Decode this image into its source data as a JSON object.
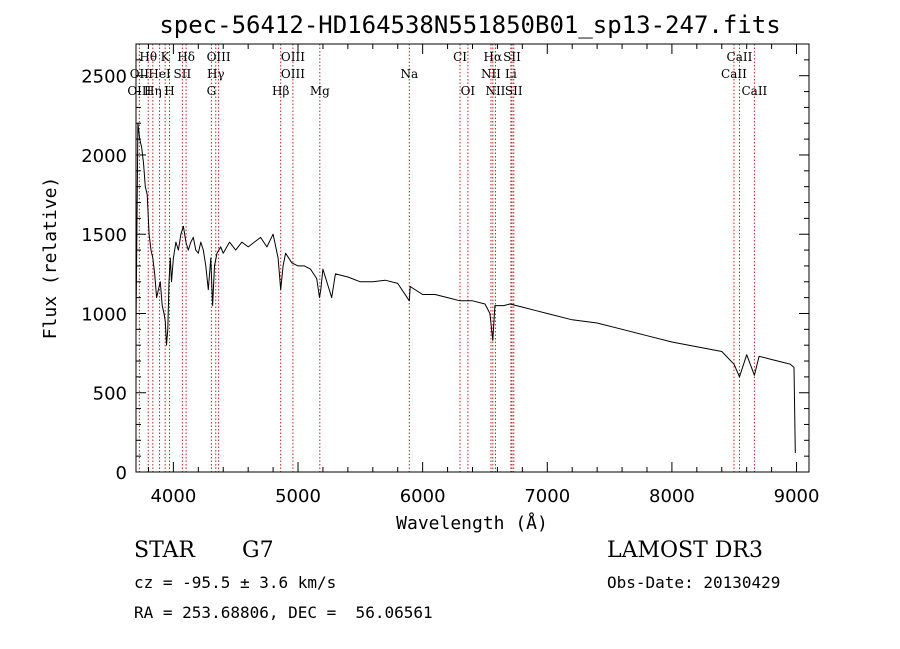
{
  "chart_data": {
    "type": "line",
    "title": "spec-56412-HD164538N551850B01_sp13-247.fits",
    "xlabel": "Wavelength (Å)",
    "ylabel": "Flux (relative)",
    "xlim": [
      3700,
      9100
    ],
    "ylim": [
      0,
      2700
    ],
    "xticks": [
      4000,
      5000,
      6000,
      7000,
      8000,
      9000
    ],
    "yticks": [
      0,
      500,
      1000,
      1500,
      2000,
      2500
    ],
    "grid": false,
    "series": [
      {
        "name": "flux",
        "x": [
          3700,
          3715,
          3730,
          3745,
          3760,
          3775,
          3790,
          3805,
          3820,
          3835,
          3850,
          3865,
          3880,
          3895,
          3910,
          3925,
          3935,
          3945,
          3955,
          3965,
          3975,
          3985,
          4000,
          4020,
          4040,
          4060,
          4080,
          4100,
          4120,
          4140,
          4160,
          4180,
          4200,
          4220,
          4240,
          4260,
          4280,
          4300,
          4315,
          4330,
          4350,
          4380,
          4400,
          4450,
          4500,
          4550,
          4600,
          4650,
          4700,
          4750,
          4800,
          4840,
          4861,
          4880,
          4900,
          4950,
          5000,
          5050,
          5100,
          5150,
          5172,
          5183,
          5200,
          5270,
          5300,
          5400,
          5500,
          5600,
          5700,
          5800,
          5893,
          5900,
          6000,
          6100,
          6200,
          6300,
          6400,
          6500,
          6540,
          6563,
          6580,
          6650,
          6700,
          6800,
          6900,
          7000,
          7200,
          7400,
          7600,
          7800,
          8000,
          8200,
          8400,
          8498,
          8542,
          8600,
          8662,
          8700,
          8800,
          8900,
          8950,
          8980,
          8990
        ],
        "values": [
          900,
          2200,
          2100,
          2050,
          1950,
          1800,
          1750,
          1500,
          1400,
          1350,
          1250,
          1100,
          1150,
          1200,
          1050,
          1000,
          950,
          800,
          900,
          1200,
          1350,
          1200,
          1350,
          1450,
          1400,
          1500,
          1550,
          1450,
          1400,
          1450,
          1480,
          1400,
          1380,
          1450,
          1400,
          1300,
          1150,
          1350,
          1050,
          1300,
          1380,
          1420,
          1380,
          1450,
          1400,
          1450,
          1420,
          1450,
          1480,
          1420,
          1500,
          1350,
          1150,
          1300,
          1380,
          1320,
          1300,
          1300,
          1280,
          1220,
          1100,
          1150,
          1280,
          1100,
          1250,
          1230,
          1200,
          1200,
          1210,
          1190,
          1080,
          1170,
          1120,
          1120,
          1100,
          1080,
          1080,
          1060,
          1000,
          830,
          1050,
          1050,
          1060,
          1040,
          1020,
          1000,
          960,
          940,
          900,
          860,
          820,
          790,
          760,
          680,
          600,
          740,
          610,
          730,
          710,
          690,
          680,
          660,
          120
        ]
      }
    ],
    "lines": [
      {
        "label": "Hθ",
        "x": 3798,
        "row": 0
      },
      {
        "label": "K",
        "x": 3934,
        "row": 0
      },
      {
        "label": "Hδ",
        "x": 4102,
        "row": 0
      },
      {
        "label": "OIII",
        "x": 4363,
        "row": 0
      },
      {
        "label": "OIII",
        "x": 4959,
        "row": 0
      },
      {
        "label": "CI",
        "x": 6300,
        "row": 0
      },
      {
        "label": "Hα",
        "x": 6563,
        "row": 0
      },
      {
        "label": "SII",
        "x": 6717,
        "row": 0
      },
      {
        "label": "CaII",
        "x": 8542,
        "row": 0
      },
      {
        "label": "OII",
        "x": 3727,
        "row": 1
      },
      {
        "label": "HeI",
        "x": 3889,
        "row": 1
      },
      {
        "label": "SII",
        "x": 4072,
        "row": 1
      },
      {
        "label": "Hγ",
        "x": 4340,
        "row": 1
      },
      {
        "label": "OIII",
        "x": 4959,
        "row": 1
      },
      {
        "label": "Na",
        "x": 5893,
        "row": 1
      },
      {
        "label": "NII",
        "x": 6548,
        "row": 1
      },
      {
        "label": "Li",
        "x": 6708,
        "row": 1
      },
      {
        "label": "CaII",
        "x": 8498,
        "row": 1
      },
      {
        "label": "OIII",
        "x": 3727,
        "row": 2
      },
      {
        "label": "Hη",
        "x": 3835,
        "row": 2
      },
      {
        "label": "H",
        "x": 3969,
        "row": 2
      },
      {
        "label": "G",
        "x": 4305,
        "row": 2
      },
      {
        "label": "Hβ",
        "x": 4861,
        "row": 2
      },
      {
        "label": "Mg",
        "x": 5175,
        "row": 2
      },
      {
        "label": "OI",
        "x": 6363,
        "row": 2
      },
      {
        "label": "NII",
        "x": 6584,
        "row": 2
      },
      {
        "label": "SII",
        "x": 6731,
        "row": 2
      },
      {
        "label": "CaII",
        "x": 8662,
        "row": 2
      }
    ]
  },
  "info": {
    "class": "STAR",
    "subclass": "G7",
    "survey": "LAMOST DR3",
    "cz": "cz = -95.5 ± 3.6 km/s",
    "obs_date": "Obs-Date: 20130429",
    "radec": "RA = 253.68806, DEC =  56.06561"
  }
}
